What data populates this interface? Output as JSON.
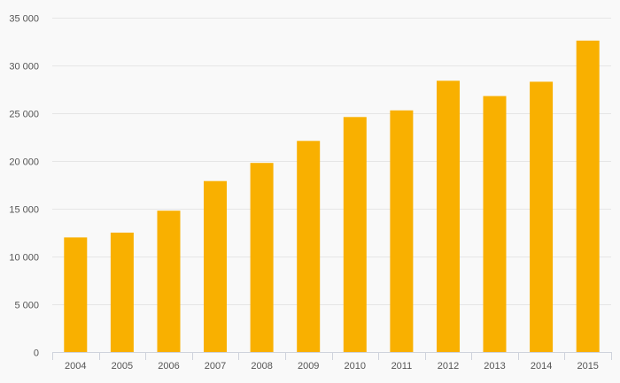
{
  "chart_data": {
    "type": "bar",
    "title": "",
    "xlabel": "",
    "ylabel": "",
    "categories": [
      "2004",
      "2005",
      "2006",
      "2007",
      "2008",
      "2009",
      "2010",
      "2011",
      "2012",
      "2013",
      "2014",
      "2015"
    ],
    "values": [
      12000,
      12500,
      14800,
      17900,
      19800,
      22100,
      24600,
      25300,
      28400,
      26800,
      28300,
      32600
    ],
    "ylim": [
      0,
      35000
    ],
    "y_ticks": [
      0,
      5000,
      10000,
      15000,
      20000,
      25000,
      30000,
      35000
    ],
    "y_tick_labels": [
      "0",
      "5 000",
      "10 000",
      "15 000",
      "20 000",
      "25 000",
      "30 000",
      "35 000"
    ],
    "grid": true,
    "legend": "none",
    "colors": {
      "bar": "#f9b000",
      "grid": "#e6e6e6",
      "axis": "#cfd3dc",
      "label": "#555555",
      "background": "#f9f9f9"
    }
  }
}
